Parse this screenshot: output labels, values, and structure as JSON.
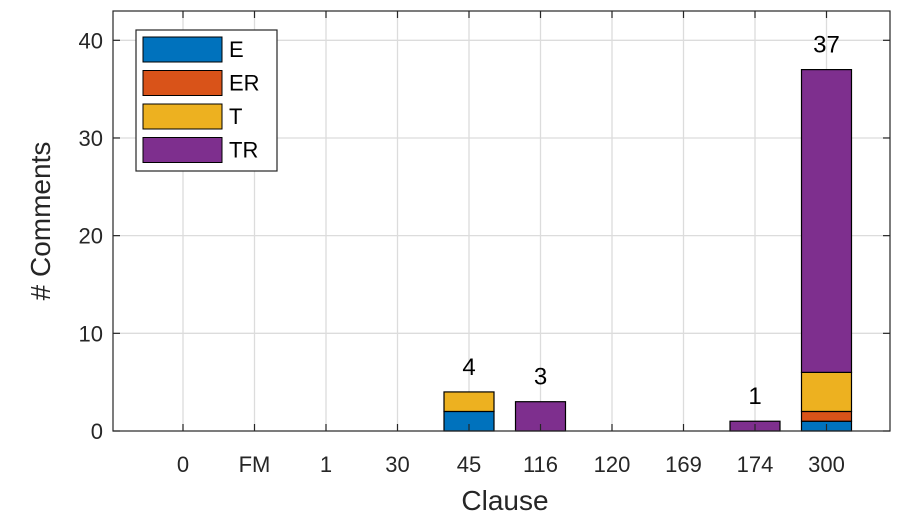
{
  "chart_data": {
    "type": "bar",
    "stacked": true,
    "xlabel": "Clause",
    "ylabel": "# Comments",
    "categories": [
      "0",
      "FM",
      "1",
      "30",
      "45",
      "116",
      "120",
      "169",
      "174",
      "300"
    ],
    "ylim": [
      0,
      43
    ],
    "yticks": [
      0,
      10,
      20,
      30,
      40
    ],
    "grid": true,
    "legend_position": "top-left",
    "series": [
      {
        "name": "E",
        "color": "#0072BD",
        "values": [
          0,
          0,
          0,
          0,
          2,
          0,
          0,
          0,
          0,
          1
        ]
      },
      {
        "name": "ER",
        "color": "#D95319",
        "values": [
          0,
          0,
          0,
          0,
          0,
          0,
          0,
          0,
          0,
          1
        ]
      },
      {
        "name": "T",
        "color": "#EDB120",
        "values": [
          0,
          0,
          0,
          0,
          2,
          0,
          0,
          0,
          0,
          4
        ]
      },
      {
        "name": "TR",
        "color": "#7E2F8E",
        "values": [
          0,
          0,
          0,
          0,
          0,
          3,
          0,
          0,
          1,
          31
        ]
      }
    ],
    "totals": [
      {
        "category": "45",
        "value": "4"
      },
      {
        "category": "116",
        "value": "3"
      },
      {
        "category": "174",
        "value": "1"
      },
      {
        "category": "300",
        "value": "37"
      }
    ]
  }
}
